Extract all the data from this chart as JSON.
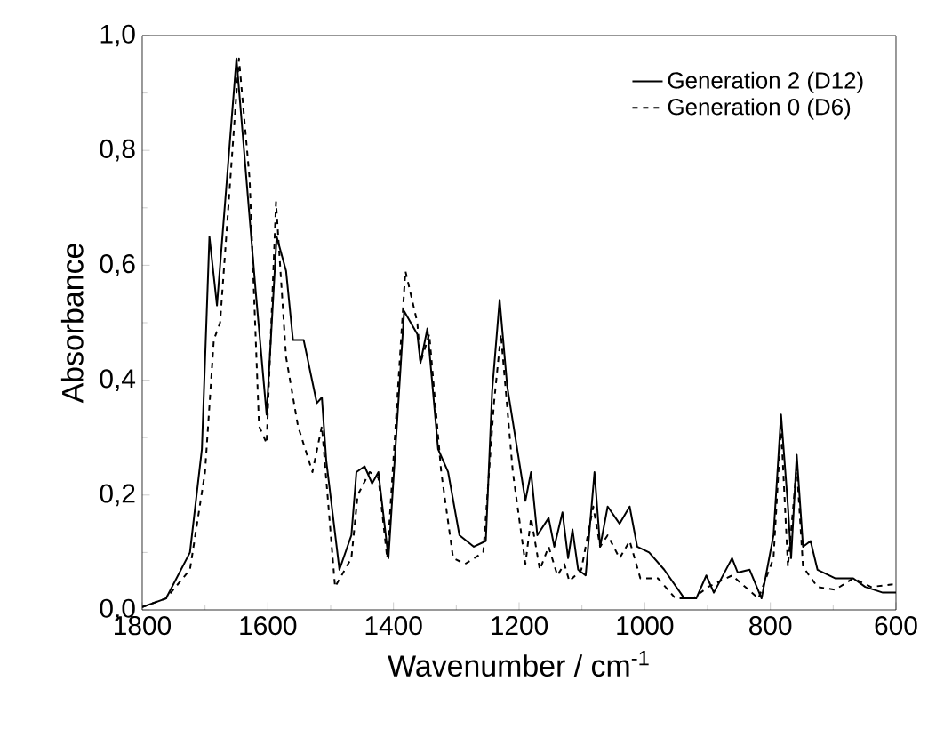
{
  "chart_data": {
    "type": "line",
    "xlabel": "Wavenumber / cm$^{-1}$",
    "ylabel": "Absorbance",
    "xlim": [
      1800,
      600
    ],
    "ylim": [
      0,
      1.0
    ],
    "xticks": [
      1800,
      1600,
      1400,
      1200,
      1000,
      800,
      600
    ],
    "yticks": [
      {
        "value": 0,
        "label": "0,0"
      },
      {
        "value": 0.2,
        "label": "0,2"
      },
      {
        "value": 0.4,
        "label": "0,4"
      },
      {
        "value": 0.6,
        "label": "0,6"
      },
      {
        "value": 0.8,
        "label": "0,8"
      },
      {
        "value": 1.0,
        "label": "1,0"
      }
    ],
    "legend": "top right",
    "marker": "none",
    "series": [
      {
        "name": "Generation 2 (D12)",
        "color": "#000000",
        "line_style": "solid",
        "x": [
          1800,
          1762,
          1724,
          1705,
          1693,
          1681,
          1650,
          1619,
          1602,
          1586,
          1571,
          1560,
          1543,
          1522,
          1514,
          1507,
          1486,
          1467,
          1459,
          1446,
          1434,
          1424,
          1408,
          1383,
          1362,
          1357,
          1346,
          1329,
          1313,
          1295,
          1272,
          1253,
          1243,
          1231,
          1219,
          1190,
          1181,
          1171,
          1153,
          1144,
          1131,
          1122,
          1115,
          1106,
          1094,
          1080,
          1071,
          1059,
          1040,
          1024,
          1012,
          993,
          969,
          937,
          918,
          902,
          890,
          861,
          852,
          833,
          814,
          795,
          783,
          772,
          767,
          758,
          748,
          736,
          725,
          697,
          668,
          649,
          621,
          600
        ],
        "values": [
          0.005,
          0.02,
          0.1,
          0.28,
          0.65,
          0.53,
          0.96,
          0.55,
          0.34,
          0.65,
          0.59,
          0.47,
          0.47,
          0.36,
          0.37,
          0.26,
          0.07,
          0.13,
          0.24,
          0.25,
          0.22,
          0.24,
          0.09,
          0.52,
          0.48,
          0.43,
          0.49,
          0.28,
          0.24,
          0.13,
          0.11,
          0.12,
          0.38,
          0.54,
          0.39,
          0.19,
          0.24,
          0.13,
          0.16,
          0.11,
          0.17,
          0.09,
          0.14,
          0.07,
          0.06,
          0.24,
          0.11,
          0.18,
          0.15,
          0.18,
          0.11,
          0.1,
          0.07,
          0.02,
          0.02,
          0.06,
          0.03,
          0.09,
          0.065,
          0.07,
          0.02,
          0.13,
          0.34,
          0.18,
          0.09,
          0.27,
          0.11,
          0.12,
          0.07,
          0.055,
          0.055,
          0.04,
          0.03,
          0.03
        ]
      },
      {
        "name": "Generation 0 (D6)",
        "color": "#000000",
        "line_style": "dashed",
        "x": [
          1800,
          1762,
          1724,
          1700,
          1686,
          1676,
          1646,
          1629,
          1614,
          1602,
          1587,
          1571,
          1552,
          1529,
          1514,
          1493,
          1467,
          1457,
          1438,
          1424,
          1410,
          1381,
          1362,
          1357,
          1343,
          1324,
          1305,
          1286,
          1257,
          1240,
          1229,
          1210,
          1190,
          1181,
          1167,
          1153,
          1139,
          1128,
          1120,
          1101,
          1082,
          1071,
          1059,
          1040,
          1024,
          1007,
          979,
          951,
          923,
          899,
          861,
          819,
          795,
          783,
          772,
          758,
          748,
          725,
          697,
          668,
          640,
          600
        ],
        "values": [
          0.005,
          0.02,
          0.07,
          0.24,
          0.47,
          0.5,
          0.96,
          0.75,
          0.32,
          0.29,
          0.71,
          0.44,
          0.32,
          0.24,
          0.32,
          0.04,
          0.09,
          0.2,
          0.24,
          0.23,
          0.09,
          0.59,
          0.5,
          0.43,
          0.48,
          0.24,
          0.09,
          0.08,
          0.1,
          0.36,
          0.48,
          0.24,
          0.08,
          0.16,
          0.07,
          0.11,
          0.06,
          0.08,
          0.05,
          0.07,
          0.18,
          0.11,
          0.13,
          0.09,
          0.12,
          0.055,
          0.055,
          0.02,
          0.02,
          0.04,
          0.06,
          0.02,
          0.09,
          0.32,
          0.075,
          0.25,
          0.075,
          0.04,
          0.035,
          0.055,
          0.04,
          0.045
        ]
      }
    ]
  }
}
